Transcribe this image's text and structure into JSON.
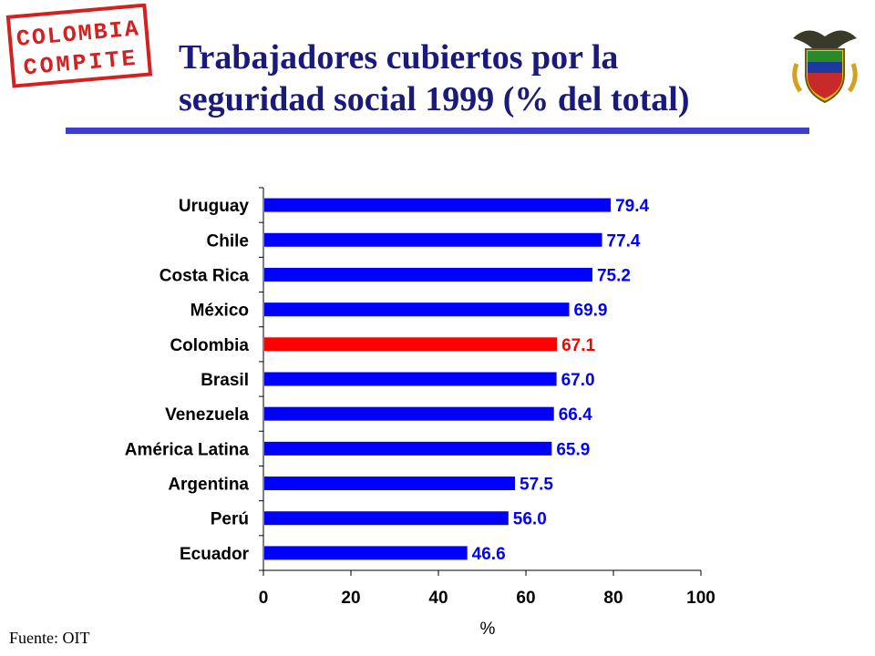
{
  "header": {
    "logo_text_1": "COLOMBIA",
    "logo_text_2": "COMPITE",
    "title_line1": "Trabajadores cubiertos por la",
    "title_line2": "seguridad social  1999 (% del total)",
    "emblem": "colombia-coat-of-arms"
  },
  "footer": {
    "source": "Fuente: OIT"
  },
  "colors": {
    "bar": "#0000ff",
    "highlight": "#ff0000",
    "rule": "#3d3dd0",
    "title": "#1a1a7a"
  },
  "chart_data": {
    "type": "bar",
    "orientation": "horizontal",
    "categories": [
      "Uruguay",
      "Chile",
      "Costa Rica",
      "México",
      "Colombia",
      "Brasil",
      "Venezuela",
      "América Latina",
      "Argentina",
      "Perú",
      "Ecuador"
    ],
    "values": [
      79.4,
      77.4,
      75.2,
      69.9,
      67.1,
      67.0,
      66.4,
      65.9,
      57.5,
      56.0,
      46.6
    ],
    "value_labels": [
      "79.4",
      "77.4",
      "75.2",
      "69.9",
      "67.1",
      "67.0",
      "66.4",
      "65.9",
      "57.5",
      "56.0",
      "46.6"
    ],
    "highlight": "Colombia",
    "xlabel": "%",
    "xlim": [
      0,
      100
    ],
    "xticks": [
      0,
      20,
      40,
      60,
      80,
      100
    ],
    "grid": false,
    "legend": "none"
  }
}
